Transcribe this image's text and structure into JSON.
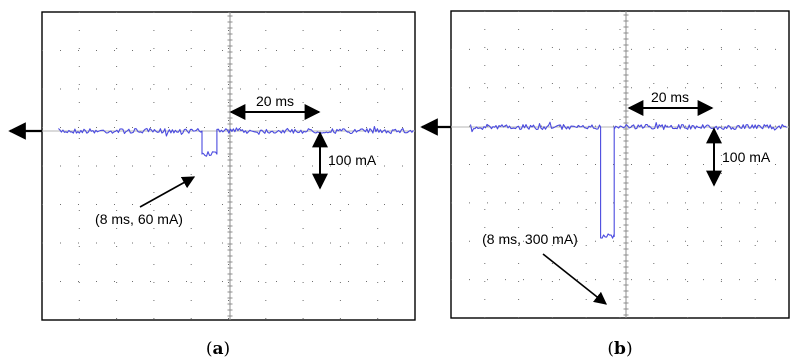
{
  "chart_data": [
    {
      "type": "line",
      "panel_label": "a",
      "caption": "(a)",
      "title": "",
      "xlabel": "",
      "ylabel": "",
      "grid": true,
      "grid_divisions": {
        "x": 10,
        "y": 8
      },
      "scale": {
        "time_per_div": "20 ms",
        "current_per_div": "100 mA"
      },
      "series": [
        {
          "x_ms": [
            -92,
            -15,
            -15,
            -7,
            -7,
            100
          ],
          "y_mA": [
            0,
            0,
            -60,
            -60,
            0,
            0
          ]
        }
      ],
      "annotations": {
        "time_scale": "20 ms",
        "current_scale": "100 mA",
        "pulse": "(8 ms, 60 mA)"
      }
    },
    {
      "type": "line",
      "panel_label": "b",
      "caption": "(b)",
      "title": "",
      "xlabel": "",
      "ylabel": "",
      "grid": true,
      "grid_divisions": {
        "x": 10,
        "y": 8
      },
      "scale": {
        "time_per_div": "20 ms",
        "current_per_div": "100 mA"
      },
      "series": [
        {
          "x_ms": [
            -92,
            -15,
            -15,
            -7,
            -7,
            100
          ],
          "y_mA": [
            0,
            0,
            -300,
            -300,
            0,
            0
          ]
        }
      ],
      "annotations": {
        "time_scale": "20 ms",
        "current_scale": "100 mA",
        "pulse": "(8 ms, 300 mA)"
      }
    }
  ],
  "colors": {
    "trace": "#4a4adf",
    "grid": "#6e6e6e",
    "frame": "#000000",
    "annotation": "#000000"
  },
  "figure": {
    "a": {
      "caption_letter": "a",
      "time_label": "20 ms",
      "current_label": "100 mA",
      "pulse_label": "(8 ms, 60 mA)"
    },
    "b": {
      "caption_letter": "b",
      "time_label": "20 ms",
      "current_label": "100 mA",
      "pulse_label": "(8 ms, 300 mA)"
    }
  }
}
